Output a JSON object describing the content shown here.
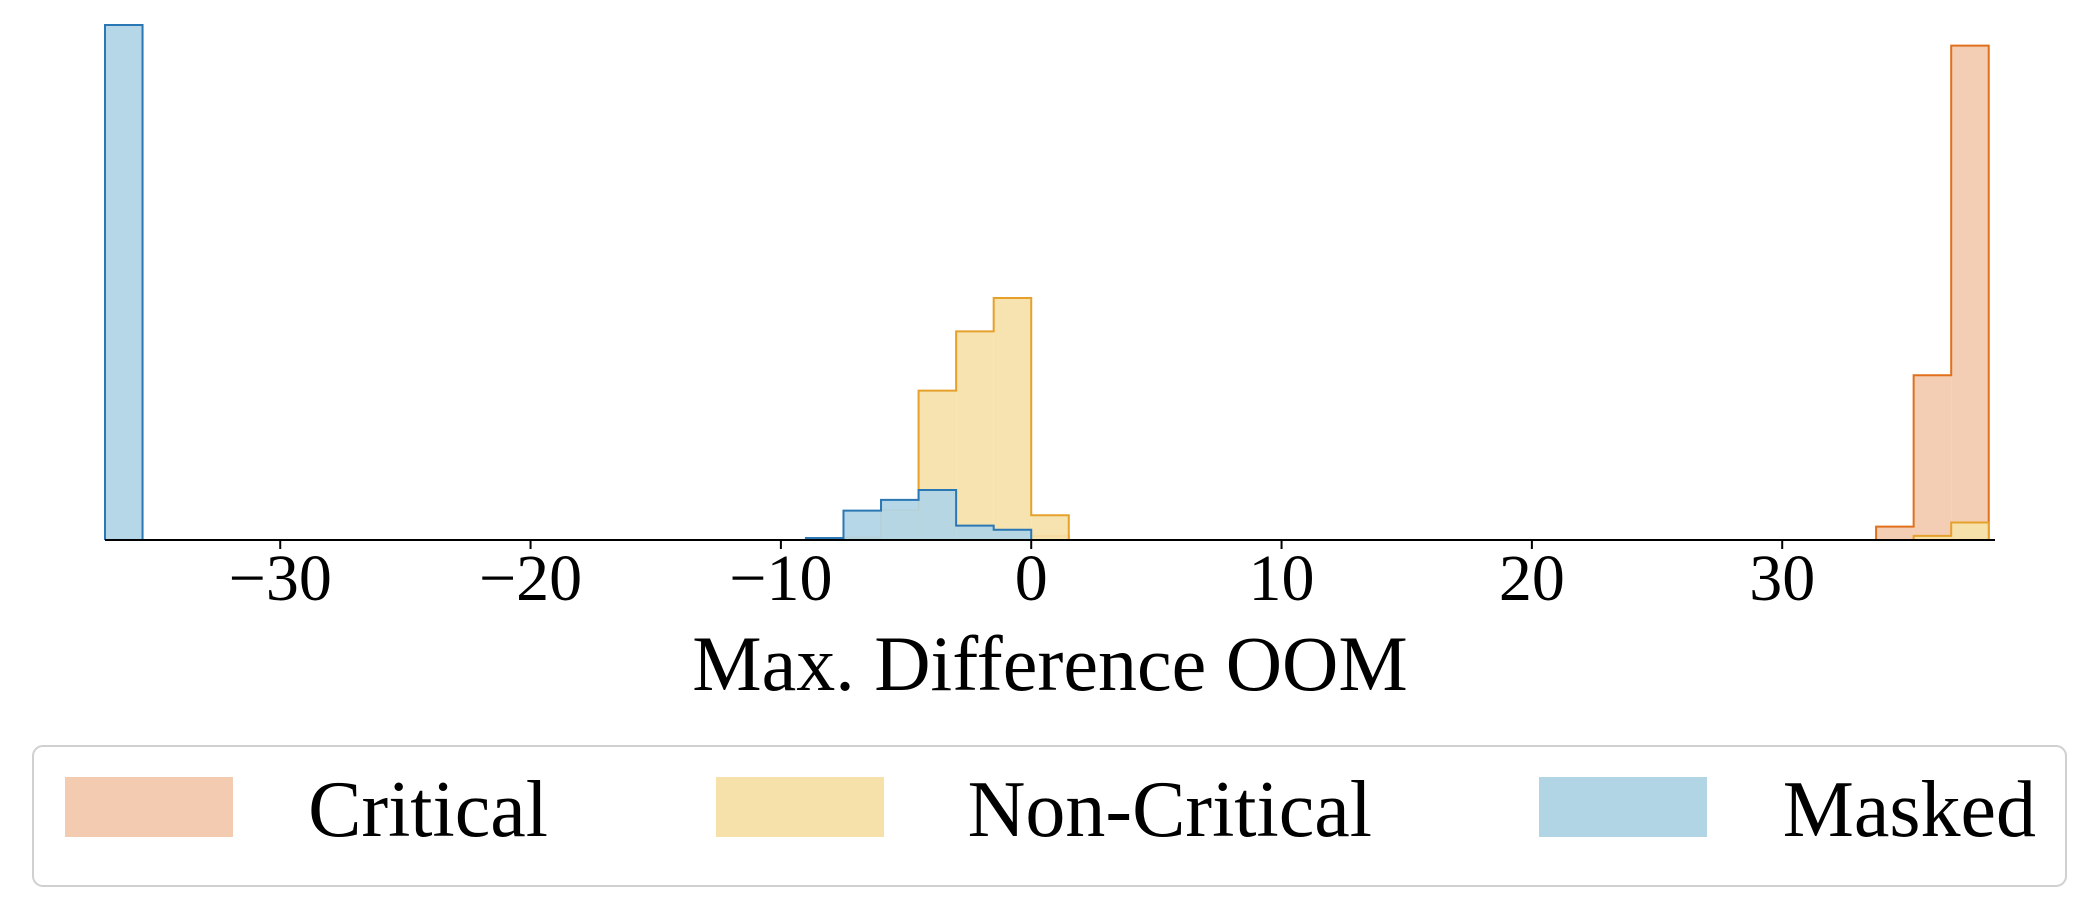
{
  "chart_data": {
    "type": "histogram",
    "title": "",
    "xlabel": "Max. Difference OOM",
    "ylabel": "",
    "xlim": [
      -37,
      38.5
    ],
    "ylim": [
      0,
      1.0
    ],
    "bin_width": 1.5,
    "x_ticks": [
      -30,
      -20,
      -10,
      0,
      10,
      20,
      30
    ],
    "x_tick_labels": [
      "−30",
      "−20",
      "−10",
      "0",
      "10",
      "20",
      "30"
    ],
    "grid": false,
    "legend_position": "bottom",
    "series": [
      {
        "name": "Critical",
        "fill": "#f2cbb0",
        "edge": "#e0701c",
        "bin_starts": [
          -1.5,
          0,
          33.75,
          35.25,
          36.75
        ],
        "heights": [
          0.004,
          0.008,
          0.026,
          0.32,
          0.96
        ]
      },
      {
        "name": "Non-Critical",
        "fill": "#f7e1ab",
        "edge": "#e5a12c",
        "bin_starts": [
          -9.0,
          -7.5,
          -6.0,
          -4.5,
          -3.0,
          -1.5,
          0,
          35.25,
          36.75
        ],
        "heights": [
          0.002,
          0.005,
          0.058,
          0.29,
          0.405,
          0.47,
          0.048,
          0.008,
          0.034
        ]
      },
      {
        "name": "Masked",
        "fill": "#b2d5e6",
        "edge": "#2a77b3",
        "bin_starts": [
          -37.0,
          -9.0,
          -7.5,
          -6.0,
          -4.5,
          -3.0,
          -1.5
        ],
        "heights": [
          1.0,
          0.004,
          0.057,
          0.078,
          0.097,
          0.028,
          0.02
        ]
      }
    ]
  }
}
